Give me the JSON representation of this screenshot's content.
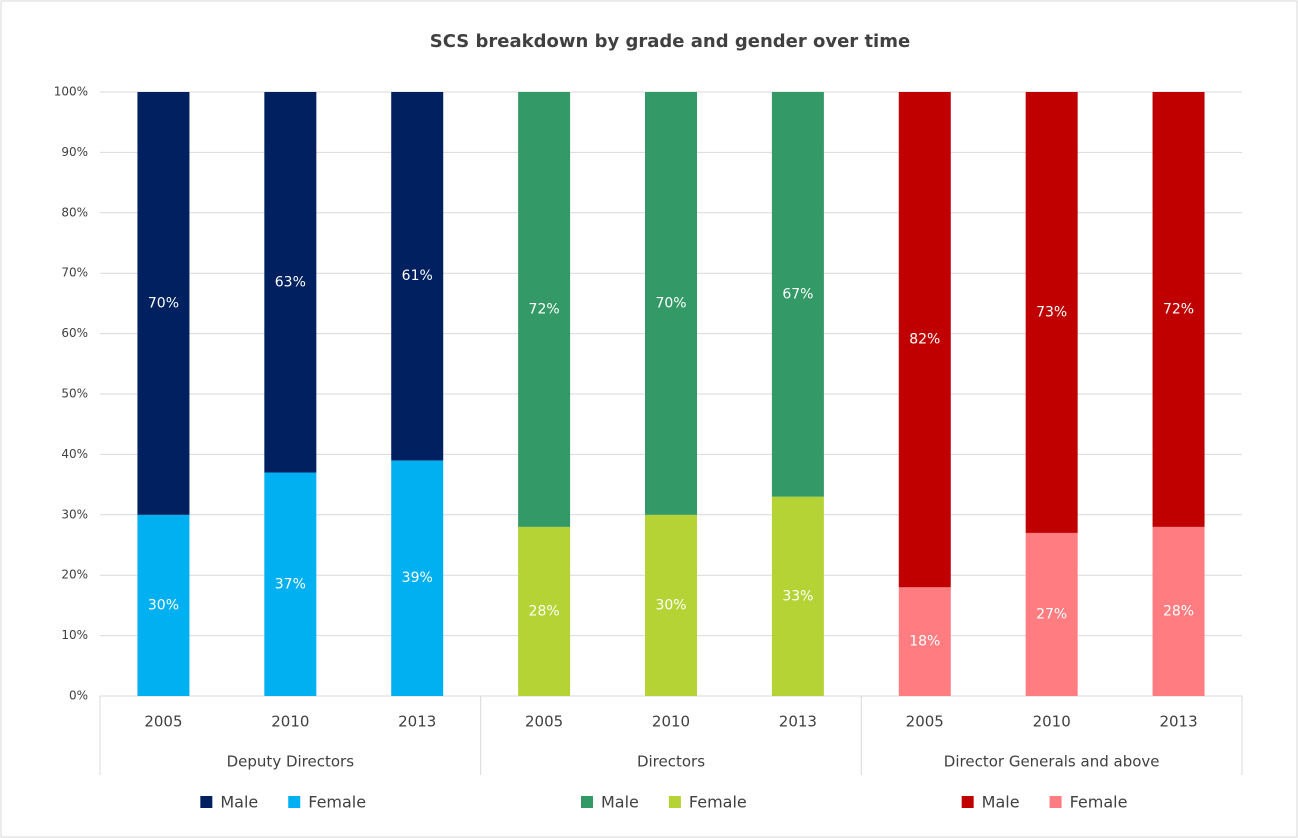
{
  "chart_data": {
    "type": "bar",
    "stacked": true,
    "title": "SCS breakdown by grade and gender over time",
    "ylim": [
      0,
      100
    ],
    "yticks": [
      {
        "value": 0,
        "label": "0%"
      },
      {
        "value": 10,
        "label": "10%"
      },
      {
        "value": 20,
        "label": "20%"
      },
      {
        "value": 30,
        "label": "30%"
      },
      {
        "value": 40,
        "label": "40%"
      },
      {
        "value": 50,
        "label": "50%"
      },
      {
        "value": 60,
        "label": "60%"
      },
      {
        "value": 70,
        "label": "70%"
      },
      {
        "value": 80,
        "label": "80%"
      },
      {
        "value": 90,
        "label": "90%"
      },
      {
        "value": 100,
        "label": "100%"
      }
    ],
    "grid": true,
    "groups": [
      {
        "name": "Deputy Directors",
        "categories": [
          "2005",
          "2010",
          "2013"
        ],
        "series": [
          {
            "name": "Male",
            "color": "#002060",
            "values": [
              70,
              63,
              61
            ],
            "value_labels": [
              "70%",
              "63%",
              "61%"
            ]
          },
          {
            "name": "Female",
            "color": "#00b0f0",
            "values": [
              30,
              37,
              39
            ],
            "value_labels": [
              "30%",
              "37%",
              "39%"
            ]
          }
        ]
      },
      {
        "name": "Directors",
        "categories": [
          "2005",
          "2010",
          "2013"
        ],
        "series": [
          {
            "name": "Male",
            "color": "#339966",
            "values": [
              72,
              70,
              67
            ],
            "value_labels": [
              "72%",
              "70%",
              "67%"
            ]
          },
          {
            "name": "Female",
            "color": "#b5d334",
            "values": [
              28,
              30,
              33
            ],
            "value_labels": [
              "28%",
              "30%",
              "33%"
            ]
          }
        ]
      },
      {
        "name": "Director Generals and above",
        "categories": [
          "2005",
          "2010",
          "2013"
        ],
        "series": [
          {
            "name": "Male",
            "color": "#c00000",
            "values": [
              82,
              73,
              72
            ],
            "value_labels": [
              "82%",
              "73%",
              "72%"
            ]
          },
          {
            "name": "Female",
            "color": "#ff7c80",
            "values": [
              18,
              27,
              28
            ],
            "value_labels": [
              "18%",
              "27%",
              "28%"
            ]
          }
        ]
      }
    ]
  }
}
